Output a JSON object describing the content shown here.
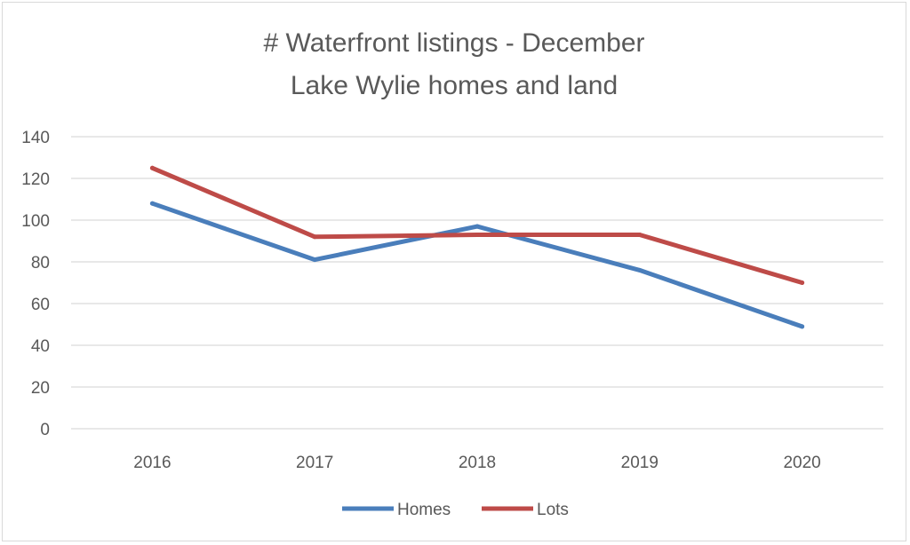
{
  "chart_data": {
    "type": "line",
    "title": "# Waterfront listings - December",
    "subtitle": "Lake Wylie homes and land",
    "categories": [
      "2016",
      "2017",
      "2018",
      "2019",
      "2020"
    ],
    "series": [
      {
        "name": "Homes",
        "values": [
          108,
          81,
          97,
          76,
          49
        ],
        "color": "#4a7ebb"
      },
      {
        "name": "Lots",
        "values": [
          125,
          92,
          93,
          93,
          70
        ],
        "color": "#be4b48"
      }
    ],
    "yticks": [
      "0",
      "20",
      "40",
      "60",
      "80",
      "100",
      "120",
      "140"
    ],
    "ylim": [
      0,
      140
    ],
    "grid": true,
    "legend_position": "bottom"
  }
}
